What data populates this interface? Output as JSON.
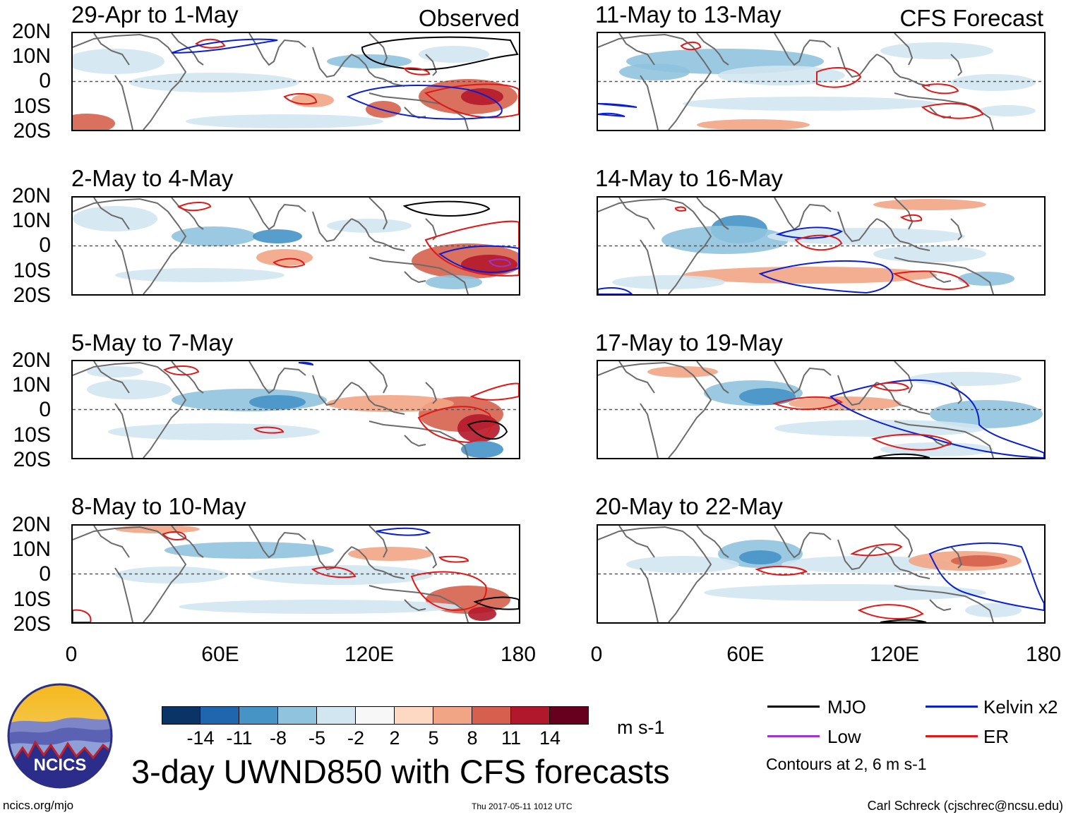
{
  "header": {
    "observed_label": "Observed",
    "forecast_label": "CFS Forecast"
  },
  "panels_left": [
    {
      "title": "29-Apr to 1-May"
    },
    {
      "title": "2-May to 4-May"
    },
    {
      "title": "5-May to 7-May"
    },
    {
      "title": "8-May to 10-May"
    }
  ],
  "panels_right": [
    {
      "title": "11-May to 13-May"
    },
    {
      "title": "14-May to 16-May"
    },
    {
      "title": "17-May to 19-May"
    },
    {
      "title": "20-May to 22-May"
    }
  ],
  "lat_labels": [
    "20N",
    "10N",
    "0",
    "10S",
    "20S"
  ],
  "lon_labels": [
    "0",
    "60E",
    "120E",
    "180"
  ],
  "colorbar": {
    "labels": [
      "-14",
      "-11",
      "-8",
      "-5",
      "-2",
      "2",
      "5",
      "8",
      "11",
      "14"
    ],
    "unit": "m s-1",
    "colors": [
      "#0a3466",
      "#1f66ae",
      "#4694c6",
      "#8fc3de",
      "#d2e6f1",
      "#f7f7f7",
      "#fdd9c3",
      "#f2a585",
      "#d6604d",
      "#b2182b",
      "#67001f"
    ]
  },
  "legend": {
    "mjo": {
      "label": "MJO",
      "color": "#000000"
    },
    "low": {
      "label": "Low",
      "color": "#9b35d6"
    },
    "kelvin": {
      "label": "Kelvin x2",
      "color": "#0a1fd1"
    },
    "er": {
      "label": "ER",
      "color": "#e01818"
    },
    "note": "Contours at 2, 6 m s-1"
  },
  "logo": {
    "text": "NCICS"
  },
  "footer": {
    "main_title": "3-day UWND850 with CFS forecasts",
    "site": "ncics.org/mjo",
    "timestamp": "Thu 2017-05-11 1012 UTC",
    "credit": "Carl Schreck (cjschrec@ncsu.edu)"
  }
}
